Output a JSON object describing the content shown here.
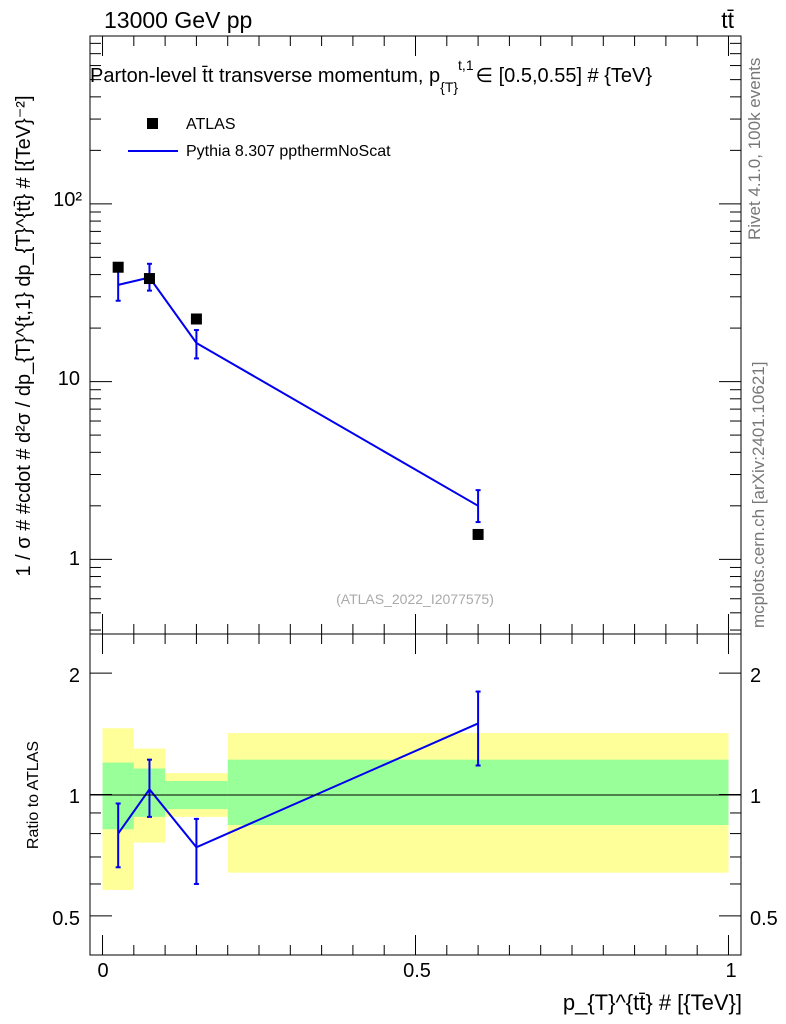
{
  "header": {
    "energy_label": "13000 GeV pp",
    "process_label": "tt̄",
    "plot_title": "Parton-level t̄t transverse momentum, p",
    "plot_title_sub": "{T}",
    "plot_title_sup": "t,1",
    "plot_title_tail": "∈ [0.5,0.55] # {TeV}",
    "analysis_id": "(ATLAS_2022_I2077575)"
  },
  "side_text": {
    "rivet": "Rivet 4.1.0,  100k events",
    "mcplots": "mcplots.cern.ch [arXiv:2401.10621]"
  },
  "legend": {
    "data_label": "ATLAS",
    "mc_label": "Pythia 8.307 ppthermNoScat"
  },
  "axes": {
    "ylabel_top": "1 / σ # #cdot # d²σ / dp_{T}^{t,1} dp_{T}^{tt̄} # [{TeV}⁻²]",
    "ylabel_bottom": "Ratio to ATLAS",
    "xlabel": "p_{T}^{tt̄} # [{TeV}]",
    "top_ticks": [
      "1",
      "10",
      "10²"
    ],
    "bottom_ticks": [
      "0.5",
      "1",
      "2"
    ],
    "x_ticks": [
      "0",
      "0.5",
      "1"
    ]
  },
  "colors": {
    "mc_line": "#0000ee",
    "band_inner": "#99ff99",
    "band_outer": "#ffff99"
  },
  "chart_data": [
    {
      "type": "scatter",
      "panel": "main",
      "title": "Parton-level t̄t transverse momentum",
      "xlabel": "p_{T}^{tt̄} [TeV]",
      "ylabel": "1/σ d²σ/dp_T dp_T [TeV⁻²]",
      "ylog": true,
      "xlim": [
        -0.02,
        1.02
      ],
      "ylim": [
        0.38,
        880
      ],
      "bin_edges": [
        0.0,
        0.05,
        0.1,
        0.2,
        1.0
      ],
      "series": [
        {
          "name": "ATLAS",
          "style": "marker",
          "x": [
            0.025,
            0.075,
            0.15,
            0.6
          ],
          "y": [
            44,
            38,
            22.5,
            1.38
          ]
        },
        {
          "name": "Pythia 8.307 ppthermNoScat",
          "style": "line",
          "x": [
            0.025,
            0.075,
            0.15,
            0.6
          ],
          "y": [
            35,
            38.5,
            16.5,
            2.0
          ],
          "yerr_low": [
            28.5,
            32.5,
            13.5,
            1.62
          ],
          "yerr_high": [
            42,
            46,
            19.5,
            2.45
          ]
        }
      ]
    },
    {
      "type": "line",
      "panel": "ratio",
      "ylabel": "Ratio to ATLAS",
      "ylog": true,
      "ylim": [
        0.4,
        2.5
      ],
      "bin_edges": [
        0.0,
        0.05,
        0.1,
        0.2,
        1.0
      ],
      "bands": {
        "inner": {
          "low": [
            0.82,
            0.88,
            0.92,
            0.84
          ],
          "high": [
            1.2,
            1.16,
            1.08,
            1.22
          ]
        },
        "outer": {
          "low": [
            0.58,
            0.76,
            0.88,
            0.64
          ],
          "high": [
            1.46,
            1.3,
            1.13,
            1.42
          ]
        }
      },
      "series": [
        {
          "name": "Pythia 8.307 ppthermNoScat",
          "x": [
            0.025,
            0.075,
            0.15,
            0.6
          ],
          "y": [
            0.8,
            1.03,
            0.74,
            1.5
          ],
          "yerr_low": [
            0.66,
            0.88,
            0.6,
            1.18
          ],
          "yerr_high": [
            0.95,
            1.22,
            0.87,
            1.8
          ]
        }
      ]
    }
  ]
}
